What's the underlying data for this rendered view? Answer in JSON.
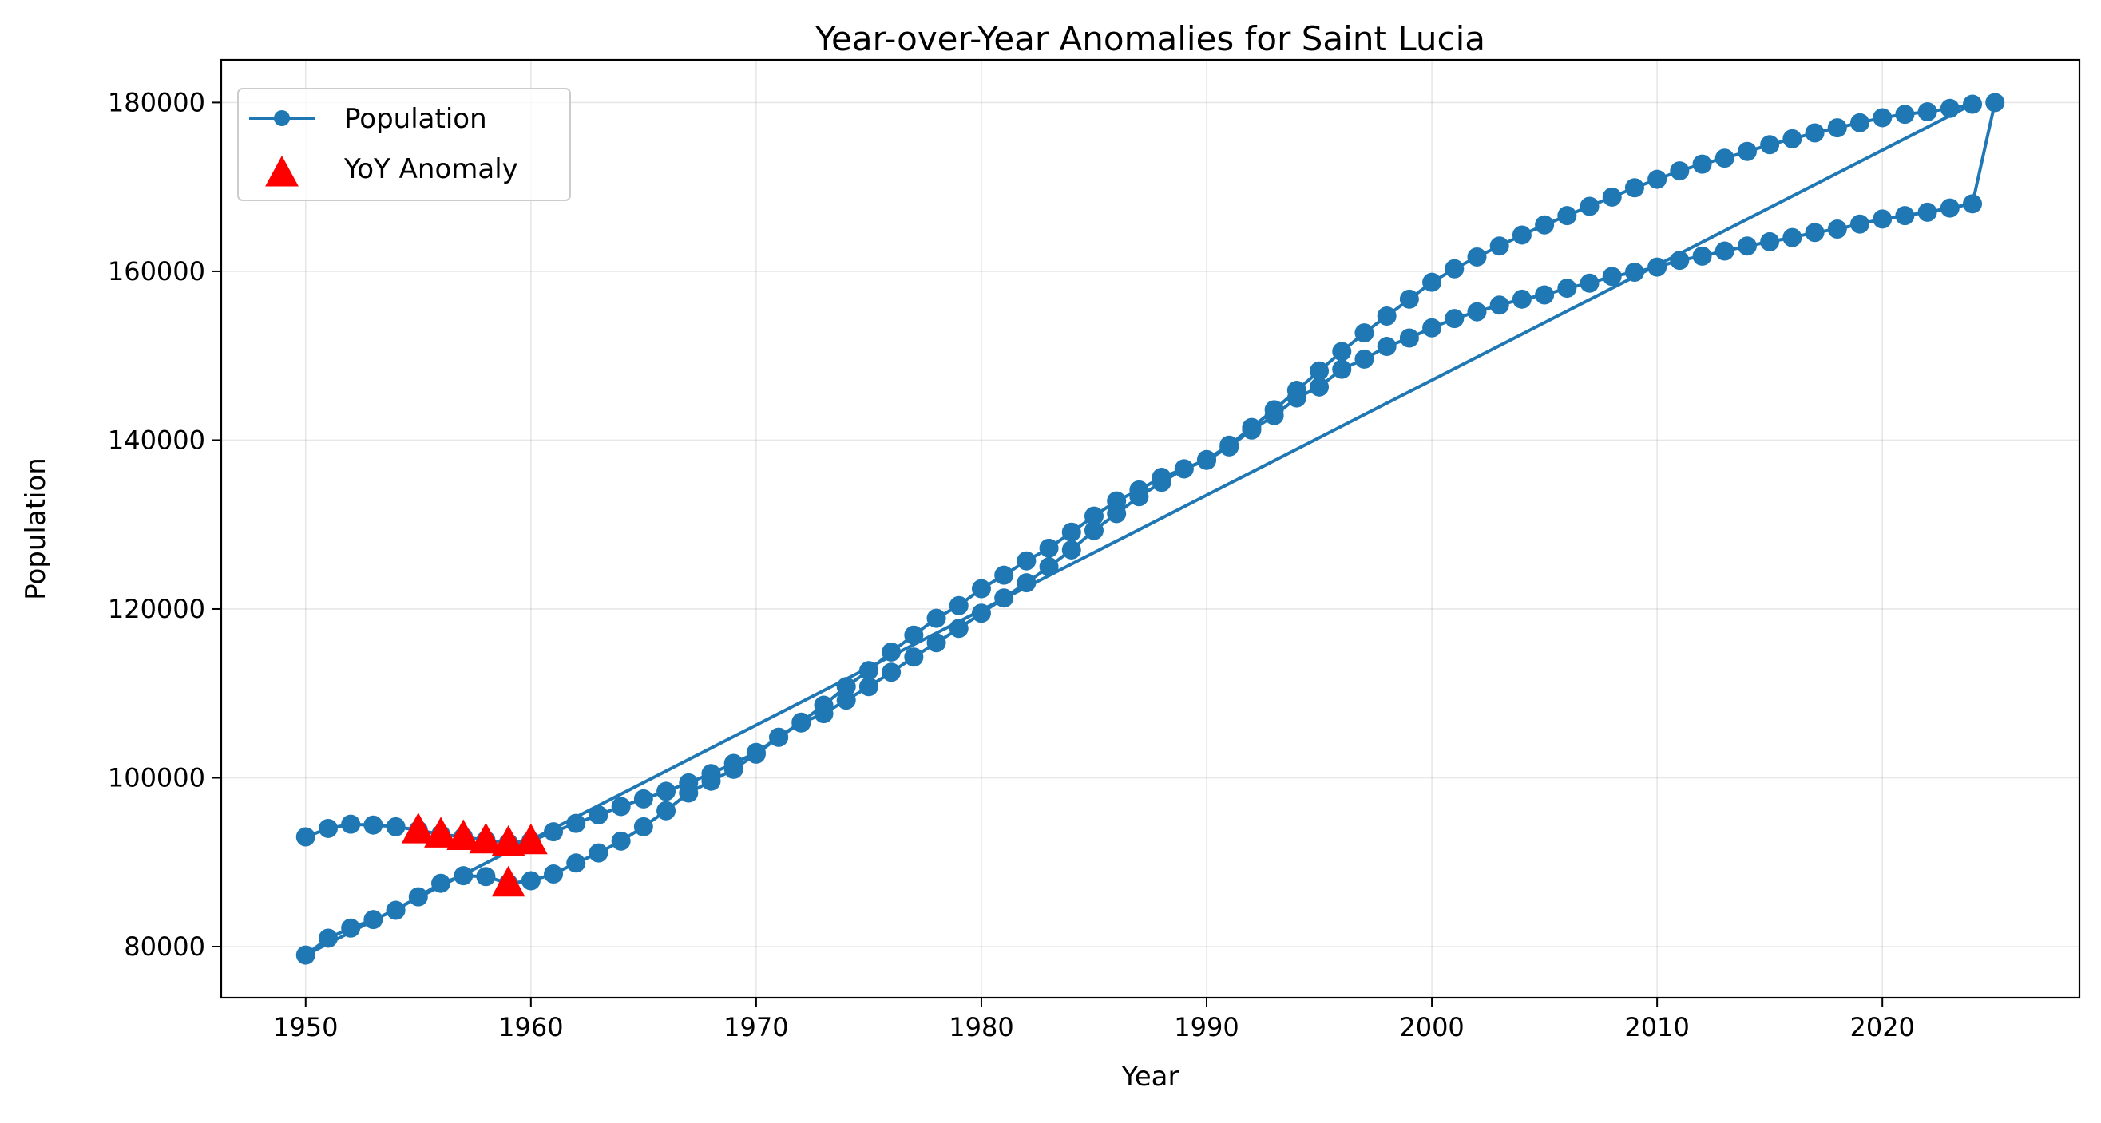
{
  "chart_data": {
    "type": "line",
    "title": "Year-over-Year Anomalies for Saint Lucia",
    "xlabel": "Year",
    "ylabel": "Population",
    "xlim": [
      1946.25,
      2028.75
    ],
    "ylim": [
      73950,
      185050
    ],
    "xticks": [
      1950,
      1960,
      1970,
      1980,
      1990,
      2000,
      2010,
      2020
    ],
    "yticks": [
      80000,
      100000,
      120000,
      140000,
      160000,
      180000
    ],
    "grid": true,
    "legend_position": "top-left",
    "colors": {
      "population": "#1f77b4",
      "anomaly": "#ff0000"
    },
    "series": [
      {
        "name": "Population",
        "marker": "circle",
        "x": [
          1950,
          1951,
          1952,
          1953,
          1954,
          1955,
          1956,
          1957,
          1958,
          1959,
          1960,
          1961,
          1962,
          1963,
          1964,
          1965,
          1966,
          1967,
          1968,
          1969,
          1970,
          1971,
          1972,
          1973,
          1974,
          1975,
          1976,
          1977,
          1978,
          1979,
          1980,
          1981,
          1982,
          1983,
          1984,
          1985,
          1986,
          1987,
          1988,
          1989,
          1990,
          1991,
          1992,
          1993,
          1994,
          1995,
          1996,
          1997,
          1998,
          1999,
          2000,
          2001,
          2002,
          2003,
          2004,
          2005,
          2006,
          2007,
          2008,
          2009,
          2010,
          2011,
          2012,
          2013,
          2014,
          2015,
          2016,
          2017,
          2018,
          2019,
          2020,
          2021,
          2022,
          2023,
          2024,
          1950,
          1951,
          1952,
          1953,
          1954,
          1955,
          1956,
          1957,
          1958,
          1959,
          1960,
          1961,
          1962,
          1963,
          1964,
          1965,
          1966,
          1967,
          1968,
          1969,
          1970,
          1971,
          1972,
          1973,
          1974,
          1975,
          1976,
          1977,
          1978,
          1979,
          1980,
          1981,
          1982,
          1983,
          1984,
          1985,
          1986,
          1987,
          1988,
          1989,
          1990,
          1991,
          1992,
          1993,
          1994,
          1995,
          1996,
          1997,
          1998,
          1999,
          2000,
          2001,
          2002,
          2003,
          2004,
          2005,
          2006,
          2007,
          2008,
          2009,
          2010,
          2011,
          2012,
          2013,
          2014,
          2015,
          2016,
          2017,
          2018,
          2019,
          2020,
          2021,
          2022,
          2023,
          2024,
          2025
        ],
        "y": [
          93000,
          94000,
          94500,
          94400,
          94200,
          93800,
          93300,
          93000,
          92600,
          92300,
          92500,
          93600,
          94600,
          95600,
          96600,
          97500,
          98400,
          99400,
          100500,
          101700,
          103000,
          104800,
          106600,
          108600,
          110800,
          112700,
          114900,
          116900,
          118900,
          120400,
          122400,
          124000,
          125700,
          127200,
          129100,
          131000,
          132800,
          134100,
          135600,
          136600,
          137700,
          139400,
          141500,
          143600,
          145900,
          148200,
          150500,
          152700,
          154700,
          156700,
          158700,
          160300,
          161700,
          163000,
          164300,
          165500,
          166600,
          167700,
          168800,
          169900,
          170900,
          171900,
          172700,
          173400,
          174200,
          175000,
          175700,
          176400,
          177000,
          177600,
          178200,
          178600,
          178900,
          179300,
          179800,
          79000,
          81000,
          82200,
          83200,
          84300,
          85900,
          87500,
          88400,
          88300,
          87500,
          87800,
          88600,
          89900,
          91100,
          92500,
          94200,
          96100,
          98200,
          99600,
          101000,
          102800,
          104800,
          106500,
          107600,
          109200,
          110800,
          112500,
          114300,
          116000,
          117700,
          119500,
          121300,
          123100,
          125000,
          127000,
          129300,
          131300,
          133300,
          135000,
          136600,
          137600,
          139200,
          141200,
          142900,
          145000,
          146300,
          148400,
          149600,
          151100,
          152100,
          153300,
          154400,
          155200,
          156000,
          156700,
          157200,
          158000,
          158600,
          159400,
          159900,
          160500,
          161300,
          161800,
          162400,
          163000,
          163500,
          164000,
          164600,
          165000,
          165600,
          166200,
          166600,
          167000,
          167500,
          168000,
          180000
        ]
      },
      {
        "name": "YoY Anomaly",
        "marker": "triangle",
        "x": [
          1955,
          1956,
          1957,
          1958,
          1959,
          1959,
          1960
        ],
        "y": [
          93800,
          93300,
          93000,
          92600,
          92300,
          87500,
          92500
        ]
      }
    ]
  }
}
